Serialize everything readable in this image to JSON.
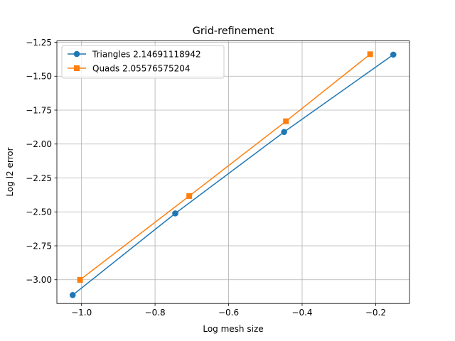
{
  "chart_data": {
    "type": "line",
    "title": "Grid-refinement",
    "xlabel": "Log mesh size",
    "ylabel": "Log l2 error",
    "xlim": [
      -1.067,
      -0.108
    ],
    "ylim": [
      -3.175,
      -1.24
    ],
    "grid": true,
    "legend_position": "upper-left",
    "xticks": [
      -1.0,
      -0.8,
      -0.6,
      -0.4,
      -0.2
    ],
    "xtick_labels": [
      "−1.0",
      "−0.8",
      "−0.6",
      "−0.4",
      "−0.2"
    ],
    "yticks": [
      -1.25,
      -1.5,
      -1.75,
      -2.0,
      -2.25,
      -2.5,
      -2.75,
      -3.0
    ],
    "ytick_labels": [
      "−1.25",
      "−1.50",
      "−1.75",
      "−2.00",
      "−2.25",
      "−2.50",
      "−2.75",
      "−3.00"
    ],
    "series": [
      {
        "name": "Triangles 2.14691118942",
        "color": "#1f77b4",
        "marker": "circle",
        "x": [
          -1.024,
          -0.745,
          -0.449,
          -0.152
        ],
        "y": [
          -3.113,
          -2.511,
          -1.911,
          -1.341
        ]
      },
      {
        "name": "Quads 2.05576575204",
        "color": "#ff7f0e",
        "marker": "square",
        "x": [
          -1.004,
          -0.707,
          -0.444,
          -0.215
        ],
        "y": [
          -3.001,
          -2.383,
          -1.832,
          -1.338
        ]
      }
    ]
  }
}
